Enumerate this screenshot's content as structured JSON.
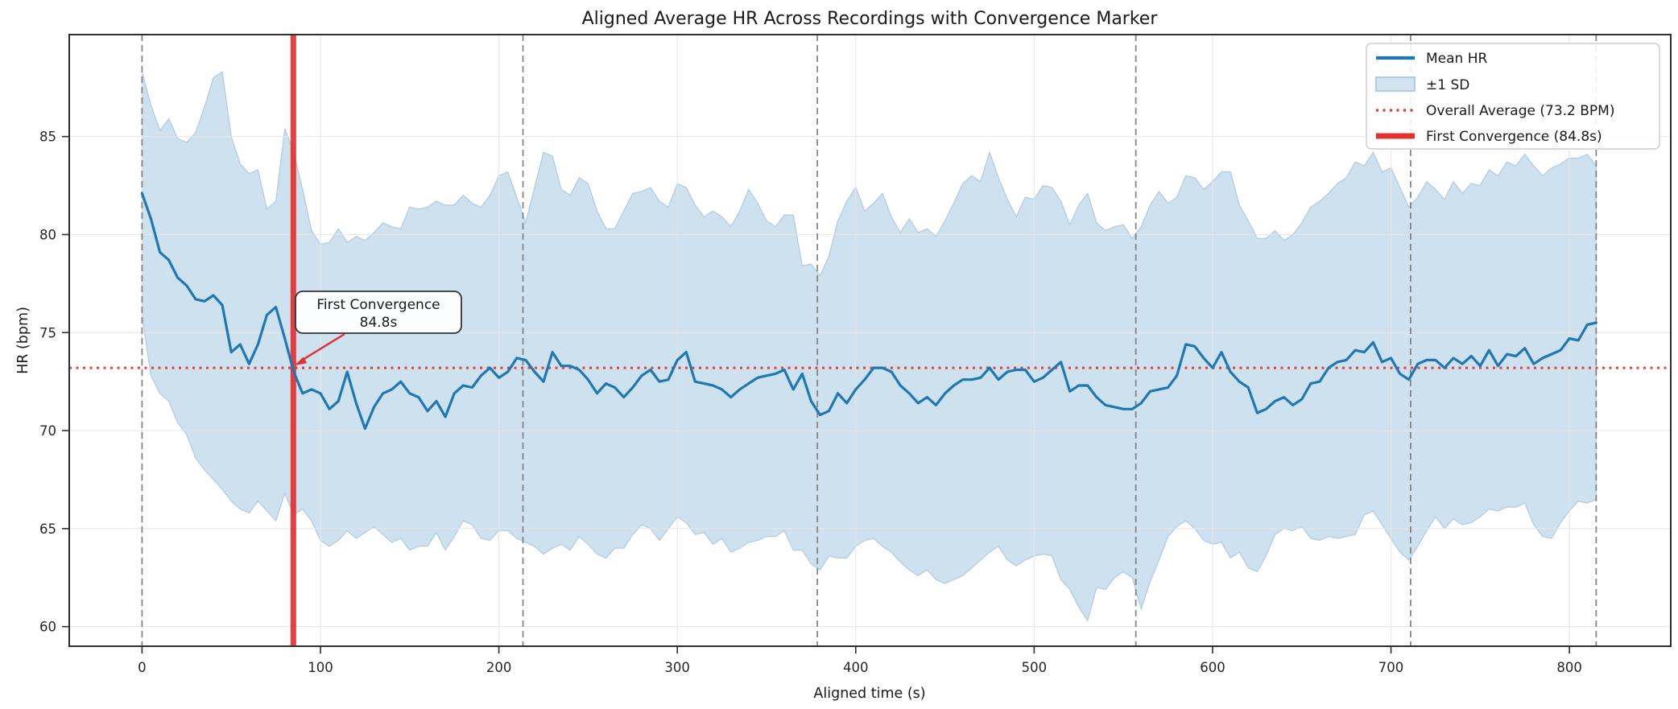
{
  "title": "Aligned Average HR Across Recordings with Convergence Marker",
  "axes": {
    "xlabel": "Aligned time (s)",
    "ylabel": "HR (bpm)",
    "xticks": [
      0,
      100,
      200,
      300,
      400,
      500,
      600,
      700,
      800
    ],
    "yticks": [
      60,
      65,
      70,
      75,
      80,
      85
    ],
    "xlim": [
      -40.8,
      856.8
    ],
    "ylim": [
      59.0,
      90.2
    ]
  },
  "legend": {
    "items": [
      {
        "label": "Mean HR",
        "type": "line"
      },
      {
        "label": "±1 SD",
        "type": "patch"
      },
      {
        "label": "Overall Average (73.2 BPM)",
        "type": "dotted"
      },
      {
        "label": "First Convergence (84.8s)",
        "type": "thickline"
      }
    ]
  },
  "annotation": {
    "line1": "First Convergence",
    "line2": "84.8s",
    "target_time_s": 84.8,
    "target_bpm": 73.2
  },
  "reference_lines": {
    "overall_average_bpm": 73.2,
    "first_convergence_s": 84.8
  },
  "recording_boundaries_s": [
    0,
    213.5,
    378.5,
    557,
    711,
    815
  ],
  "chart_data": {
    "type": "line",
    "title": "Aligned Average HR Across Recordings with Convergence Marker",
    "xlabel": "Aligned time (s)",
    "ylabel": "HR (bpm)",
    "xlim": [
      -40.8,
      856.8
    ],
    "ylim": [
      59.0,
      90.2
    ],
    "grid": true,
    "legend_position": "upper right",
    "x_start": 0,
    "x_step": 5,
    "hline_overall_average": 73.2,
    "vline_first_convergence": 84.8,
    "series": [
      {
        "name": "Mean HR",
        "values": [
          82.1,
          80.8,
          79.1,
          78.7,
          77.8,
          77.4,
          76.7,
          76.6,
          76.9,
          76.4,
          74.0,
          74.4,
          73.4,
          74.4,
          75.9,
          76.3,
          74.7,
          73.0,
          71.9,
          72.1,
          71.9,
          71.1,
          71.5,
          73.0,
          71.4,
          70.1,
          71.2,
          71.9,
          72.1,
          72.5,
          71.9,
          71.7,
          71.0,
          71.5,
          70.7,
          71.9,
          72.3,
          72.2,
          72.8,
          73.2,
          72.7,
          73.0,
          73.7,
          73.6,
          73.0,
          72.5,
          74.0,
          73.3,
          73.3,
          73.1,
          72.6,
          71.9,
          72.4,
          72.2,
          71.7,
          72.2,
          72.8,
          73.1,
          72.5,
          72.6,
          73.6,
          74.0,
          72.5,
          72.4,
          72.3,
          72.1,
          71.7,
          72.1,
          72.4,
          72.7,
          72.8,
          72.9,
          73.1,
          72.1,
          72.9,
          71.5,
          70.8,
          71.0,
          71.9,
          71.4,
          72.1,
          72.6,
          73.2,
          73.2,
          73.0,
          72.3,
          71.9,
          71.4,
          71.7,
          71.3,
          71.9,
          72.3,
          72.6,
          72.6,
          72.7,
          73.2,
          72.6,
          73.0,
          73.1,
          73.1,
          72.5,
          72.7,
          73.1,
          73.5,
          72.0,
          72.3,
          72.3,
          71.7,
          71.3,
          71.2,
          71.1,
          71.1,
          71.4,
          72.0,
          72.1,
          72.2,
          72.8,
          74.4,
          74.3,
          73.7,
          73.2,
          74.0,
          73.0,
          72.5,
          72.2,
          70.9,
          71.1,
          71.5,
          71.7,
          71.3,
          71.6,
          72.4,
          72.5,
          73.2,
          73.5,
          73.6,
          74.1,
          74.0,
          74.5,
          73.5,
          73.7,
          72.9,
          72.6,
          73.4,
          73.6,
          73.6,
          73.2,
          73.7,
          73.4,
          73.8,
          73.3,
          74.1,
          73.3,
          73.9,
          73.8,
          74.2,
          73.4,
          73.7,
          73.9,
          74.1,
          74.7,
          74.6,
          75.4,
          75.5
        ]
      },
      {
        "name": "+1 SD (upper band)",
        "values": [
          88.3,
          86.6,
          85.3,
          85.9,
          84.9,
          84.7,
          85.2,
          86.5,
          88.0,
          88.3,
          85.0,
          83.6,
          83.1,
          83.3,
          81.3,
          81.7,
          85.4,
          84.2,
          82.3,
          80.2,
          79.5,
          79.6,
          80.3,
          79.6,
          79.9,
          79.7,
          80.1,
          80.6,
          80.4,
          80.3,
          81.4,
          81.3,
          81.4,
          81.7,
          81.5,
          81.5,
          82.0,
          81.6,
          81.4,
          82.0,
          83.0,
          83.2,
          81.9,
          80.6,
          82.4,
          84.2,
          84.0,
          82.3,
          82.0,
          82.9,
          82.6,
          81.2,
          80.3,
          80.3,
          81.2,
          82.1,
          82.2,
          82.4,
          81.7,
          81.4,
          82.6,
          82.4,
          81.5,
          80.9,
          81.2,
          80.9,
          80.4,
          81.2,
          82.3,
          81.6,
          80.7,
          80.4,
          81.0,
          81.0,
          78.4,
          78.5,
          77.9,
          78.9,
          80.7,
          81.7,
          82.4,
          81.2,
          81.6,
          82.1,
          80.9,
          80.1,
          80.8,
          80.1,
          80.3,
          79.9,
          80.7,
          81.6,
          82.6,
          83.0,
          82.7,
          84.2,
          82.9,
          81.8,
          80.9,
          81.9,
          81.8,
          82.5,
          82.4,
          81.7,
          80.5,
          81.5,
          82.1,
          80.6,
          80.2,
          80.4,
          80.5,
          79.8,
          80.4,
          81.5,
          82.2,
          81.6,
          81.9,
          83.0,
          82.9,
          82.3,
          82.7,
          83.2,
          83.2,
          81.5,
          80.7,
          79.8,
          79.8,
          80.2,
          79.7,
          80.0,
          80.6,
          81.4,
          81.7,
          82.1,
          82.6,
          82.9,
          83.7,
          83.5,
          84.2,
          83.2,
          83.4,
          82.4,
          81.4,
          81.9,
          82.7,
          82.3,
          81.8,
          82.7,
          82.1,
          82.6,
          82.5,
          83.3,
          83.0,
          83.7,
          83.5,
          84.1,
          83.5,
          83.0,
          83.4,
          83.6,
          83.9,
          83.9,
          84.1,
          83.5
        ]
      },
      {
        "name": "-1 SD (lower band)",
        "values": [
          75.9,
          72.8,
          71.9,
          71.5,
          70.4,
          69.8,
          68.6,
          68.0,
          67.5,
          67.0,
          66.4,
          66.0,
          65.8,
          66.4,
          65.9,
          65.4,
          66.8,
          65.7,
          66.0,
          65.4,
          64.4,
          64.1,
          64.4,
          64.9,
          64.5,
          64.8,
          65.1,
          64.7,
          64.3,
          64.5,
          63.9,
          64.1,
          64.1,
          64.8,
          63.9,
          64.6,
          65.4,
          65.2,
          64.5,
          64.4,
          64.9,
          64.9,
          64.5,
          64.3,
          64.1,
          63.7,
          64.0,
          64.2,
          63.9,
          64.6,
          64.2,
          63.7,
          63.5,
          64.0,
          64.0,
          64.7,
          65.2,
          65.0,
          64.4,
          65.0,
          65.6,
          65.3,
          64.7,
          64.8,
          64.2,
          64.5,
          63.8,
          64.0,
          64.3,
          64.4,
          64.6,
          64.6,
          64.9,
          63.9,
          63.9,
          63.2,
          62.9,
          63.6,
          63.5,
          63.5,
          64.1,
          64.4,
          64.5,
          64.1,
          63.8,
          63.3,
          62.9,
          62.6,
          62.9,
          62.4,
          62.2,
          62.4,
          62.6,
          63.0,
          63.4,
          63.8,
          64.1,
          63.4,
          63.1,
          63.4,
          63.6,
          63.7,
          63.6,
          62.4,
          61.9,
          61.0,
          60.3,
          62.0,
          61.9,
          62.5,
          62.8,
          62.5,
          60.9,
          62.3,
          63.4,
          64.6,
          65.1,
          65.4,
          65.0,
          64.4,
          64.2,
          64.3,
          63.5,
          63.8,
          63.0,
          62.8,
          63.6,
          64.7,
          65.0,
          64.9,
          65.1,
          64.5,
          64.4,
          64.6,
          64.5,
          64.6,
          64.7,
          65.7,
          65.9,
          65.2,
          64.5,
          63.8,
          63.4,
          64.1,
          64.9,
          65.6,
          65.0,
          65.5,
          65.2,
          65.3,
          65.6,
          66.0,
          65.9,
          66.1,
          66.1,
          66.3,
          65.2,
          64.6,
          64.5,
          65.3,
          65.9,
          66.4,
          66.3,
          66.5
        ]
      }
    ]
  },
  "style": {
    "mean_color": "#1f77b4",
    "band_fill": "#1f77b4",
    "band_fill_opacity": "0.22",
    "band_edge": "#a9c7e1",
    "band_swatch_fill": "#d3e3f0",
    "band_swatch_stroke": "#9fc3dd",
    "red_color": "#e8352e",
    "vline_color": "#e53030",
    "boundary_color": "#7a7a7a",
    "grid_color": "#e7e7e7",
    "spine_color": "#2d2d2d",
    "text_color": "#1a1a1a"
  }
}
